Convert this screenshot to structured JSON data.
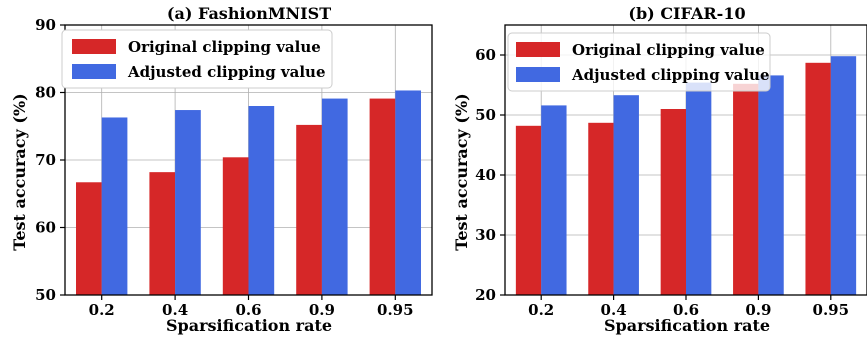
{
  "chart_data": [
    {
      "type": "bar",
      "title": "(a) FashionMNIST",
      "xlabel": "Sparsification rate",
      "ylabel": "Test accuracy (%)",
      "categories": [
        "0.2",
        "0.4",
        "0.6",
        "0.9",
        "0.95"
      ],
      "ylim": [
        50,
        90
      ],
      "yticks": [
        50,
        60,
        70,
        80,
        90
      ],
      "grid": true,
      "legend_position": "top-left",
      "series": [
        {
          "name": "Original clipping value",
          "color": "#d62728",
          "values": [
            66.7,
            68.2,
            70.4,
            75.2,
            79.1
          ]
        },
        {
          "name": "Adjusted clipping value",
          "color": "#4169e1",
          "values": [
            76.3,
            77.4,
            78.0,
            79.1,
            80.3
          ]
        }
      ]
    },
    {
      "type": "bar",
      "title": "(b) CIFAR-10",
      "xlabel": "Sparsification rate",
      "ylabel": "Test accuracy (%)",
      "categories": [
        "0.2",
        "0.4",
        "0.6",
        "0.9",
        "0.95"
      ],
      "ylim": [
        20,
        65
      ],
      "yticks": [
        20,
        30,
        40,
        50,
        60
      ],
      "grid": true,
      "legend_position": "top-left",
      "series": [
        {
          "name": "Original clipping value",
          "color": "#d62728",
          "values": [
            48.2,
            48.7,
            51.0,
            55.2,
            58.7
          ]
        },
        {
          "name": "Adjusted clipping value",
          "color": "#4169e1",
          "values": [
            51.6,
            53.3,
            55.4,
            56.6,
            59.8
          ]
        }
      ]
    }
  ]
}
